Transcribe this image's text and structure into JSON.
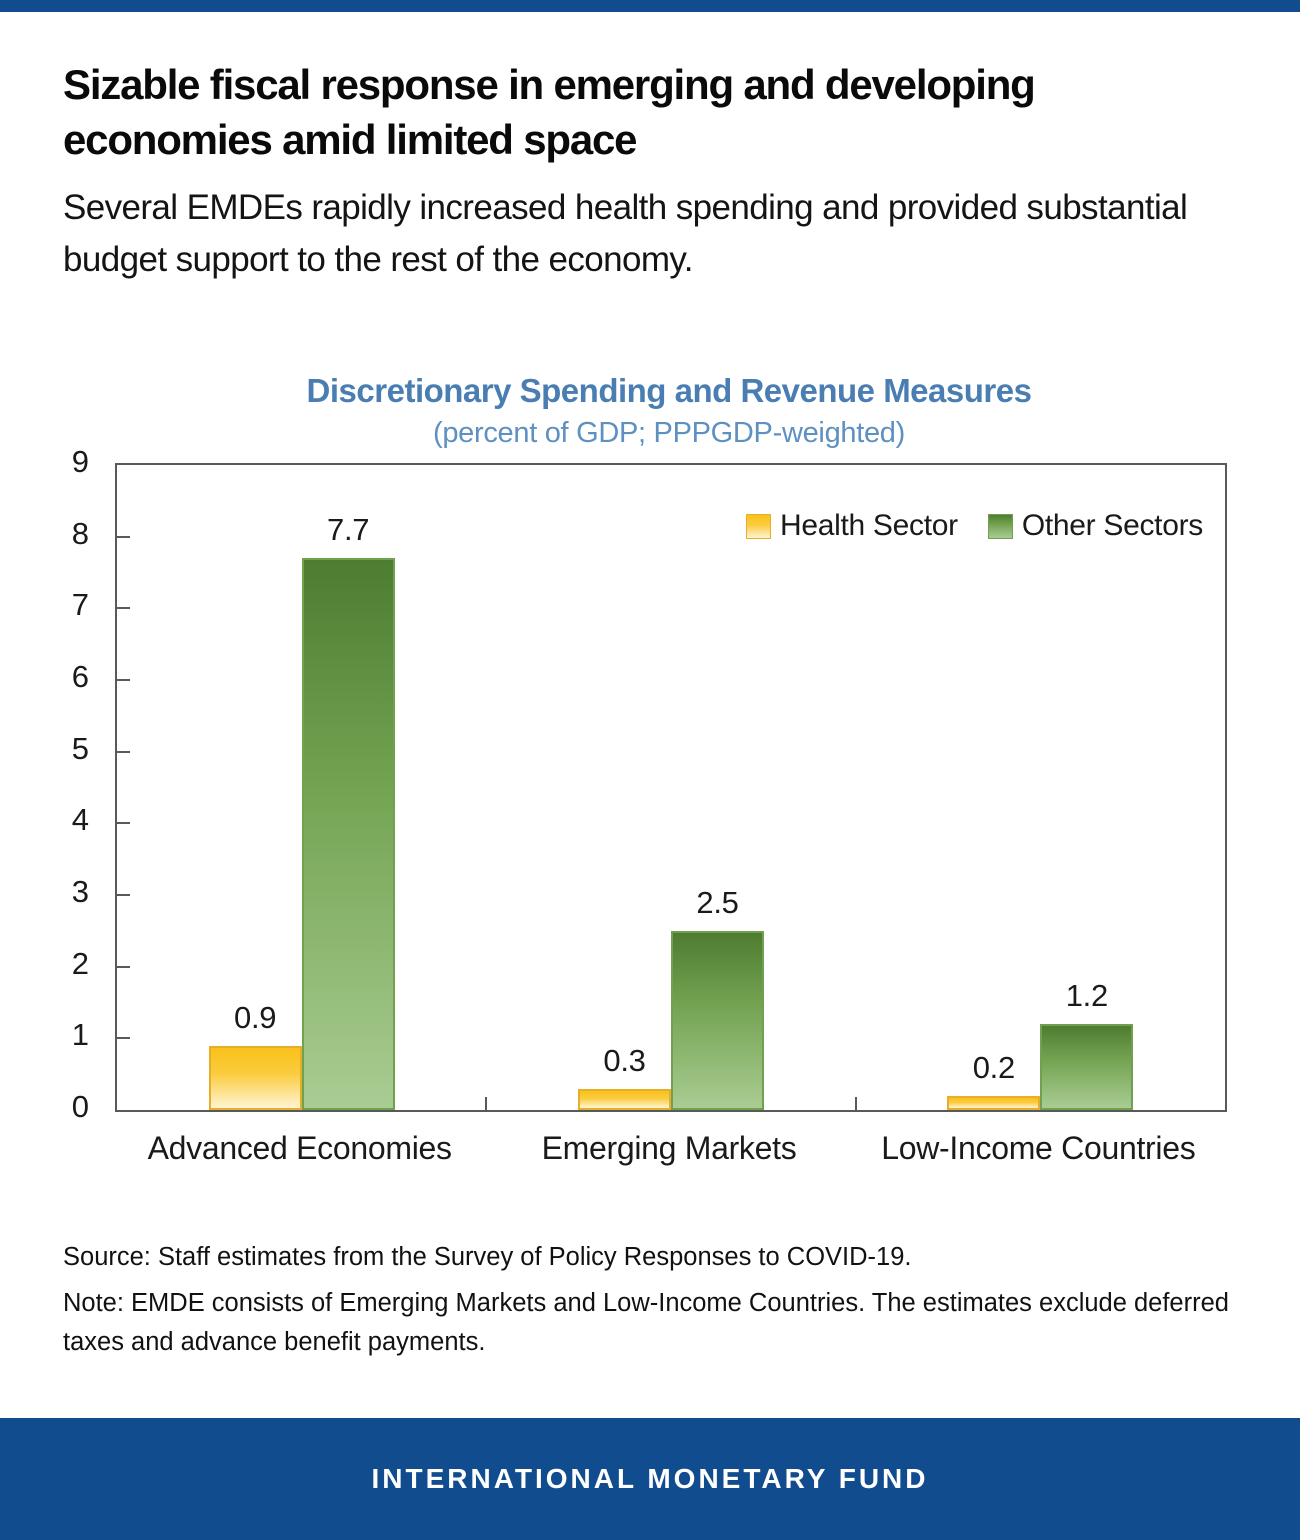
{
  "page": {
    "top_bar_color": "#114C8F",
    "background_color": "#FFFFFF"
  },
  "header": {
    "title": "Sizable fiscal response in emerging and developing economies amid limited space",
    "subtitle": "Several EMDEs rapidly increased health spending and provided substantial budget support to the rest of the economy."
  },
  "chart_data": {
    "type": "bar",
    "title": "Discretionary Spending and Revenue Measures",
    "subtitle": "(percent of GDP; PPPGDP-weighted)",
    "title_color": "#4A7EB3",
    "subtitle_color": "#5E90C1",
    "categories": [
      "Advanced Economies",
      "Emerging Markets",
      "Low-Income Countries"
    ],
    "series": [
      {
        "name": "Health Sector",
        "values": [
          0.9,
          0.3,
          0.2
        ],
        "color_top": "#F9C11A",
        "color_mid": "#FBCB3D",
        "color_bottom": "#FEF4D2",
        "border_color": "#E7AE2B"
      },
      {
        "name": "Other Sectors",
        "values": [
          7.7,
          2.5,
          1.2
        ],
        "color_top": "#4E7C31",
        "color_mid": "#74A452",
        "color_bottom": "#A9CC93",
        "border_color": "#6FA14F"
      }
    ],
    "ylim": [
      0,
      9
    ],
    "yticks": [
      0,
      1,
      2,
      3,
      4,
      5,
      6,
      7,
      8,
      9
    ],
    "value_labels": true,
    "grid": false,
    "legend_position": "top-right",
    "axis_color": "#595959"
  },
  "notes": {
    "source": "Source: Staff estimates from the Survey of Policy Responses to COVID-19.",
    "note": "Note: EMDE consists of Emerging Markets and Low-Income Countries. The estimates exclude deferred taxes and advance benefit payments."
  },
  "footer": {
    "label": "INTERNATIONAL MONETARY FUND",
    "background_color": "#114C8F"
  }
}
